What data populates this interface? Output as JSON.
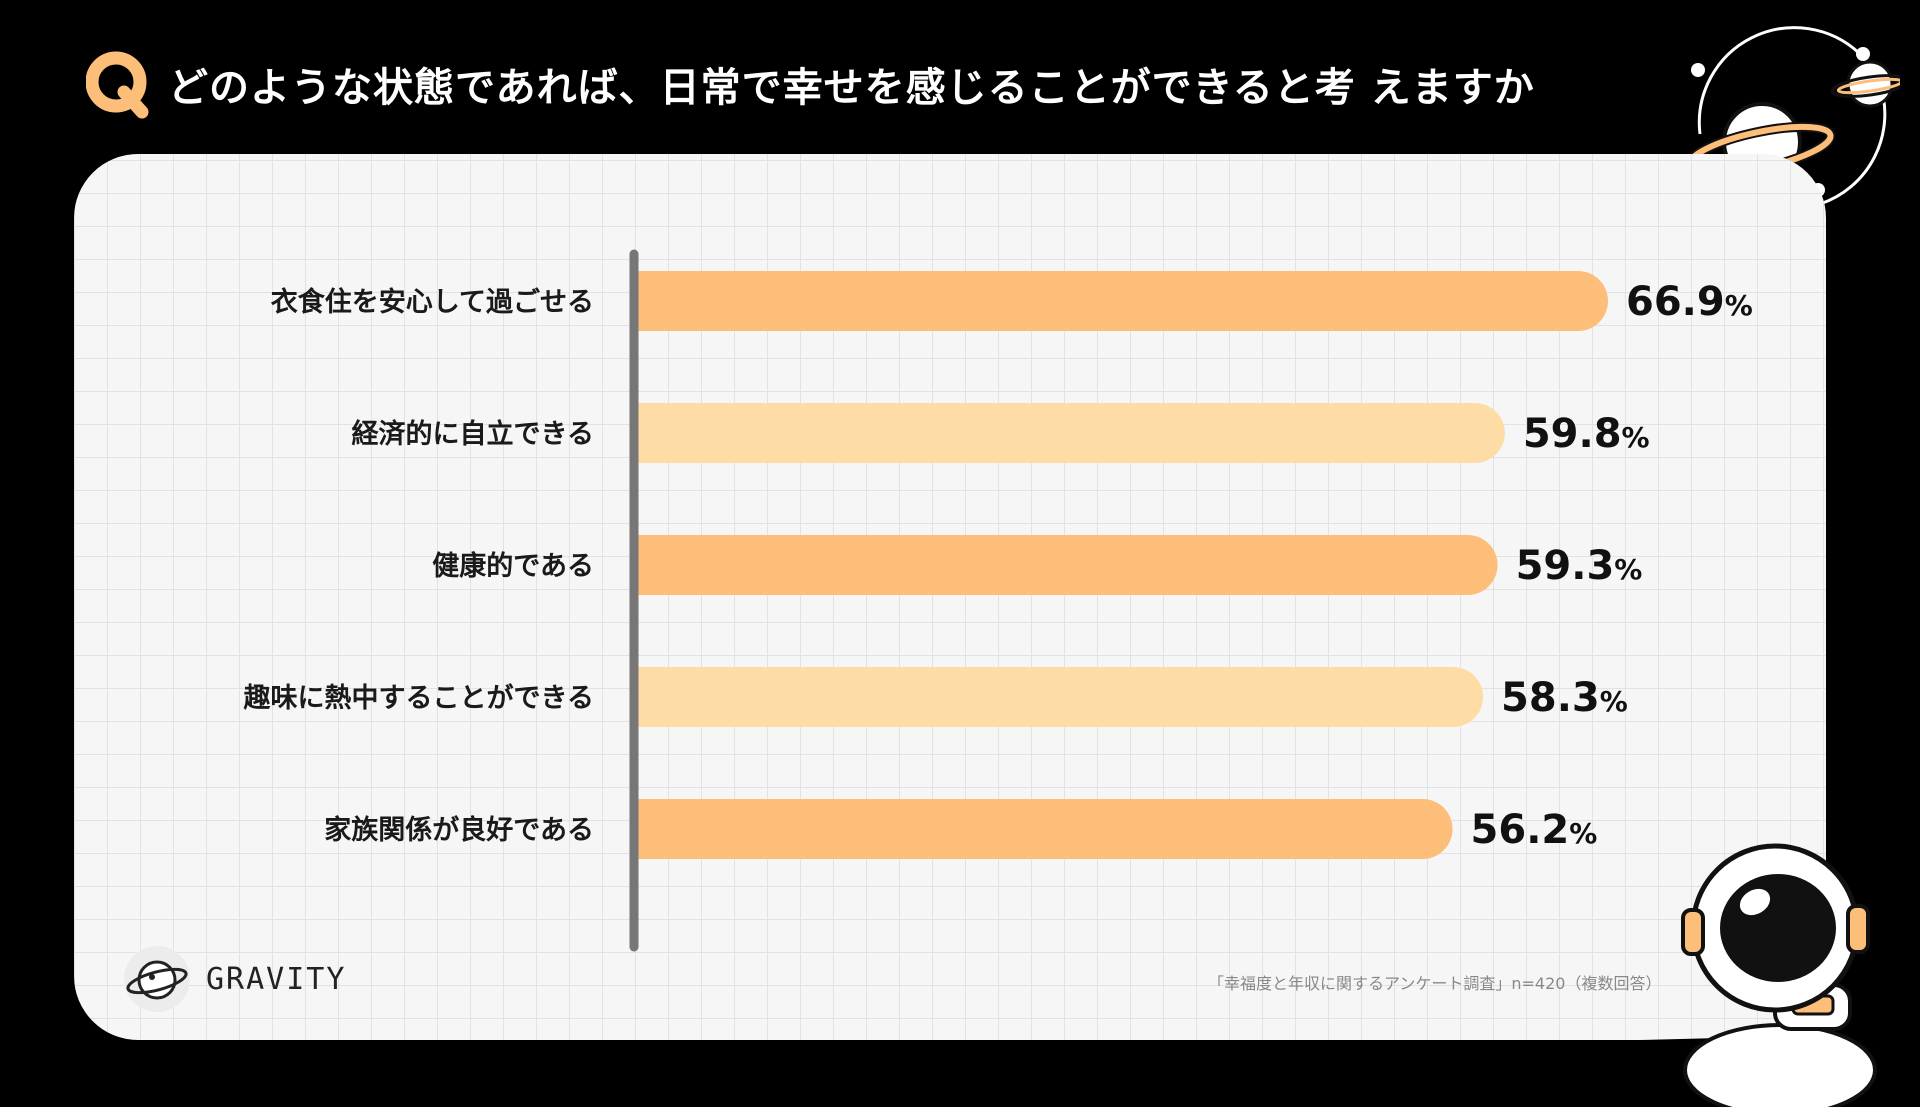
{
  "header": {
    "q_mark": "Q",
    "question": "どのような状態であれば、日常で幸せを感じることができると考 えますか"
  },
  "chart_data": {
    "type": "bar",
    "orientation": "horizontal",
    "categories": [
      "衣食住を安心して過ごせる",
      "経済的に自立できる",
      "健康的である",
      "趣味に熱中することができる",
      "家族関係が良好である"
    ],
    "values": [
      66.9,
      59.8,
      59.3,
      58.3,
      56.2
    ],
    "value_labels": [
      "66.9",
      "59.8",
      "59.3",
      "58.3",
      "56.2"
    ],
    "unit": "%",
    "colors": [
      "#FDBE7A",
      "#FEDCA6",
      "#FDBE7A",
      "#FEDCA6",
      "#FDBE7A"
    ],
    "grid": false
  },
  "logo": {
    "name": "GRAVITY",
    "icon": "planet-icon"
  },
  "source": "「幸福度と年収に関するアンケート調査」n=420（複数回答）",
  "decorations": {
    "top_right": "planets-illustration",
    "bottom_right": "astronaut-illustration"
  }
}
